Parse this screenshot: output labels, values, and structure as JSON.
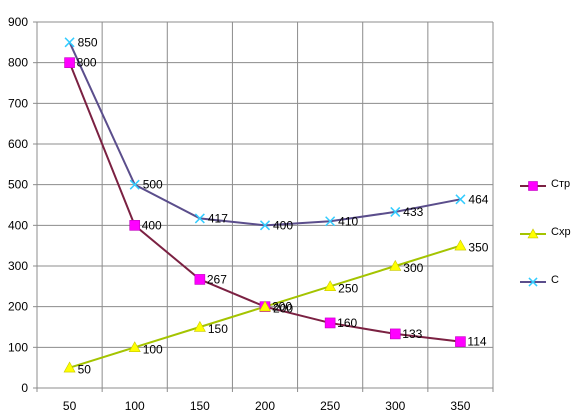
{
  "chart_data": {
    "type": "line",
    "x": [
      50,
      100,
      150,
      200,
      250,
      300,
      350
    ],
    "ylim": [
      0,
      900
    ],
    "y_ticks": [
      0,
      100,
      200,
      300,
      400,
      500,
      600,
      700,
      800,
      900
    ],
    "grid": true,
    "legend_position": "right",
    "series": [
      {
        "name": "Стр",
        "values": [
          800,
          400,
          267,
          200,
          160,
          133,
          114
        ],
        "labels": [
          "800",
          "400",
          "267",
          "200",
          "160",
          "133",
          "114"
        ],
        "line_color": "#7B2142",
        "marker_color": "#FF00FF",
        "marker": "square"
      },
      {
        "name": "Схр",
        "values": [
          50,
          100,
          150,
          200,
          250,
          300,
          350
        ],
        "labels": [
          "50",
          "100",
          "150",
          "200",
          "250",
          "300",
          "350"
        ],
        "line_color": "#A4C400",
        "marker_color": "#FFFF00",
        "marker": "triangle"
      },
      {
        "name": "С",
        "values": [
          850,
          500,
          417,
          400,
          410,
          433,
          464
        ],
        "labels": [
          "850",
          "500",
          "417",
          "400",
          "410",
          "433",
          "464"
        ],
        "line_color": "#5B4E8C",
        "marker_color": "#33CCFF",
        "marker": "x"
      }
    ]
  }
}
